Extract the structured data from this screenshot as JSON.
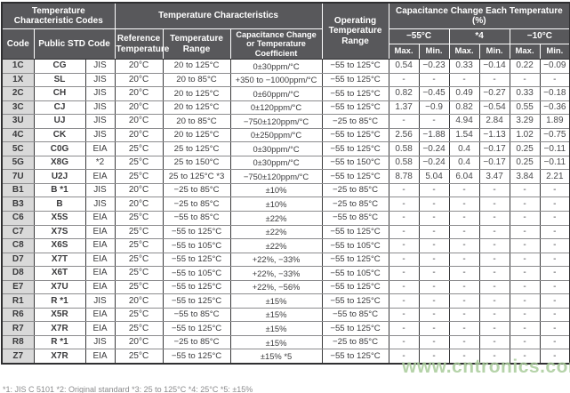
{
  "table": {
    "header": {
      "temp_char_codes": "Temperature Characteristic Codes",
      "temp_characteristics": "Temperature Characteristics",
      "operating_range": "Operating Temperature Range",
      "cap_change_each": "Capacitance Change Each Temperature (%)",
      "code": "Code",
      "public_std_code": "Public STD Code",
      "reference_temperature": "Reference Temperature",
      "temperature_range": "Temperature Range",
      "cap_change_or_coeff": "Capacitance Change or Temperature Coefficient",
      "temp_points": [
        "−55°C",
        "*4",
        "−10°C"
      ],
      "max_label": "Max.",
      "min_label": "Min."
    },
    "rows": [
      {
        "code": "1C",
        "std": "CG",
        "org": "JIS",
        "ref": "20°C",
        "range": "20 to 125°C",
        "coeff": "0±30ppm/°C",
        "op": "−55 to 125°C",
        "vals": [
          "0.54",
          "−0.23",
          "0.33",
          "−0.14",
          "0.22",
          "−0.09"
        ]
      },
      {
        "code": "1X",
        "std": "SL",
        "org": "JIS",
        "ref": "20°C",
        "range": "20 to 85°C",
        "coeff": "+350 to −1000ppm/°C",
        "op": "−55 to 125°C",
        "vals": [
          "-",
          "-",
          "-",
          "-",
          "-",
          "-"
        ]
      },
      {
        "code": "2C",
        "std": "CH",
        "org": "JIS",
        "ref": "20°C",
        "range": "20 to 125°C",
        "coeff": "0±60ppm/°C",
        "op": "−55 to 125°C",
        "vals": [
          "0.82",
          "−0.45",
          "0.49",
          "−0.27",
          "0.33",
          "−0.18"
        ]
      },
      {
        "code": "3C",
        "std": "CJ",
        "org": "JIS",
        "ref": "20°C",
        "range": "20 to 125°C",
        "coeff": "0±120ppm/°C",
        "op": "−55 to 125°C",
        "vals": [
          "1.37",
          "−0.9",
          "0.82",
          "−0.54",
          "0.55",
          "−0.36"
        ]
      },
      {
        "code": "3U",
        "std": "UJ",
        "org": "JIS",
        "ref": "20°C",
        "range": "20 to 85°C",
        "coeff": "−750±120ppm/°C",
        "op": "−25 to 85°C",
        "vals": [
          "-",
          "-",
          "4.94",
          "2.84",
          "3.29",
          "1.89"
        ]
      },
      {
        "code": "4C",
        "std": "CK",
        "org": "JIS",
        "ref": "20°C",
        "range": "20 to 125°C",
        "coeff": "0±250ppm/°C",
        "op": "−55 to 125°C",
        "vals": [
          "2.56",
          "−1.88",
          "1.54",
          "−1.13",
          "1.02",
          "−0.75"
        ]
      },
      {
        "code": "5C",
        "std": "C0G",
        "org": "EIA",
        "ref": "25°C",
        "range": "25 to 125°C",
        "coeff": "0±30ppm/°C",
        "op": "−55 to 125°C",
        "vals": [
          "0.58",
          "−0.24",
          "0.4",
          "−0.17",
          "0.25",
          "−0.11"
        ]
      },
      {
        "code": "5G",
        "std": "X8G",
        "org": "*2",
        "ref": "25°C",
        "range": "25 to 150°C",
        "coeff": "0±30ppm/°C",
        "op": "−55 to 150°C",
        "vals": [
          "0.58",
          "−0.24",
          "0.4",
          "−0.17",
          "0.25",
          "−0.11"
        ]
      },
      {
        "code": "7U",
        "std": "U2J",
        "org": "EIA",
        "ref": "25°C",
        "range": "25 to 125°C *3",
        "coeff": "−750±120ppm/°C",
        "op": "−55 to 125°C",
        "vals": [
          "8.78",
          "5.04",
          "6.04",
          "3.47",
          "3.84",
          "2.21"
        ]
      },
      {
        "code": "B1",
        "std": "B *1",
        "org": "JIS",
        "ref": "20°C",
        "range": "−25 to 85°C",
        "coeff": "±10%",
        "op": "−25 to 85°C",
        "vals": [
          "-",
          "-",
          "-",
          "-",
          "-",
          "-"
        ]
      },
      {
        "code": "B3",
        "std": "B",
        "org": "JIS",
        "ref": "20°C",
        "range": "−25 to 85°C",
        "coeff": "±10%",
        "op": "−25 to 85°C",
        "vals": [
          "-",
          "-",
          "-",
          "-",
          "-",
          "-"
        ]
      },
      {
        "code": "C6",
        "std": "X5S",
        "org": "EIA",
        "ref": "25°C",
        "range": "−55 to 85°C",
        "coeff": "±22%",
        "op": "−55 to 85°C",
        "vals": [
          "-",
          "-",
          "-",
          "-",
          "-",
          "-"
        ]
      },
      {
        "code": "C7",
        "std": "X7S",
        "org": "EIA",
        "ref": "25°C",
        "range": "−55 to 125°C",
        "coeff": "±22%",
        "op": "−55 to 125°C",
        "vals": [
          "-",
          "-",
          "-",
          "-",
          "-",
          "-"
        ]
      },
      {
        "code": "C8",
        "std": "X6S",
        "org": "EIA",
        "ref": "25°C",
        "range": "−55 to 105°C",
        "coeff": "±22%",
        "op": "−55 to 105°C",
        "vals": [
          "-",
          "-",
          "-",
          "-",
          "-",
          "-"
        ]
      },
      {
        "code": "D7",
        "std": "X7T",
        "org": "EIA",
        "ref": "25°C",
        "range": "−55 to 125°C",
        "coeff": "+22%, −33%",
        "op": "−55 to 125°C",
        "vals": [
          "-",
          "-",
          "-",
          "-",
          "-",
          "-"
        ]
      },
      {
        "code": "D8",
        "std": "X6T",
        "org": "EIA",
        "ref": "25°C",
        "range": "−55 to 105°C",
        "coeff": "+22%, −33%",
        "op": "−55 to 105°C",
        "vals": [
          "-",
          "-",
          "-",
          "-",
          "-",
          "-"
        ]
      },
      {
        "code": "E7",
        "std": "X7U",
        "org": "EIA",
        "ref": "25°C",
        "range": "−55 to 125°C",
        "coeff": "+22%, −56%",
        "op": "−55 to 125°C",
        "vals": [
          "-",
          "-",
          "-",
          "-",
          "-",
          "-"
        ]
      },
      {
        "code": "R1",
        "std": "R *1",
        "org": "JIS",
        "ref": "20°C",
        "range": "−55 to 125°C",
        "coeff": "±15%",
        "op": "−55 to 125°C",
        "vals": [
          "-",
          "-",
          "-",
          "-",
          "-",
          "-"
        ]
      },
      {
        "code": "R6",
        "std": "X5R",
        "org": "EIA",
        "ref": "25°C",
        "range": "−55 to 85°C",
        "coeff": "±15%",
        "op": "−55 to 85°C",
        "vals": [
          "-",
          "-",
          "-",
          "-",
          "-",
          "-"
        ]
      },
      {
        "code": "R7",
        "std": "X7R",
        "org": "EIA",
        "ref": "25°C",
        "range": "−55 to 125°C",
        "coeff": "±15%",
        "op": "−55 to 125°C",
        "vals": [
          "-",
          "-",
          "-",
          "-",
          "-",
          "-"
        ]
      },
      {
        "code": "R8",
        "std": "R *1",
        "org": "JIS",
        "ref": "20°C",
        "range": "−25 to 85°C",
        "coeff": "±15%",
        "op": "−25 to 85°C",
        "vals": [
          "-",
          "-",
          "-",
          "-",
          "-",
          "-"
        ]
      },
      {
        "code": "Z7",
        "std": "X7R",
        "org": "EIA",
        "ref": "25°C",
        "range": "−55 to 125°C",
        "coeff": "±15% *5",
        "op": "−55 to 125°C",
        "vals": [
          "-",
          "-",
          "-",
          "-",
          "-",
          "-"
        ]
      }
    ]
  },
  "watermark": {
    "text": "www.cntronics.com",
    "color": "#a9cc9b"
  },
  "footnote": {
    "clipped_text": "*1: JIS C 5101   *2: Original standard   *3: 25 to 125°C   *4: 25°C   *5: ±15%"
  },
  "colors": {
    "header_bg": "#58585b",
    "code_column_bg": "#d9d9d9",
    "watermark_green": "#a9cc9b"
  }
}
